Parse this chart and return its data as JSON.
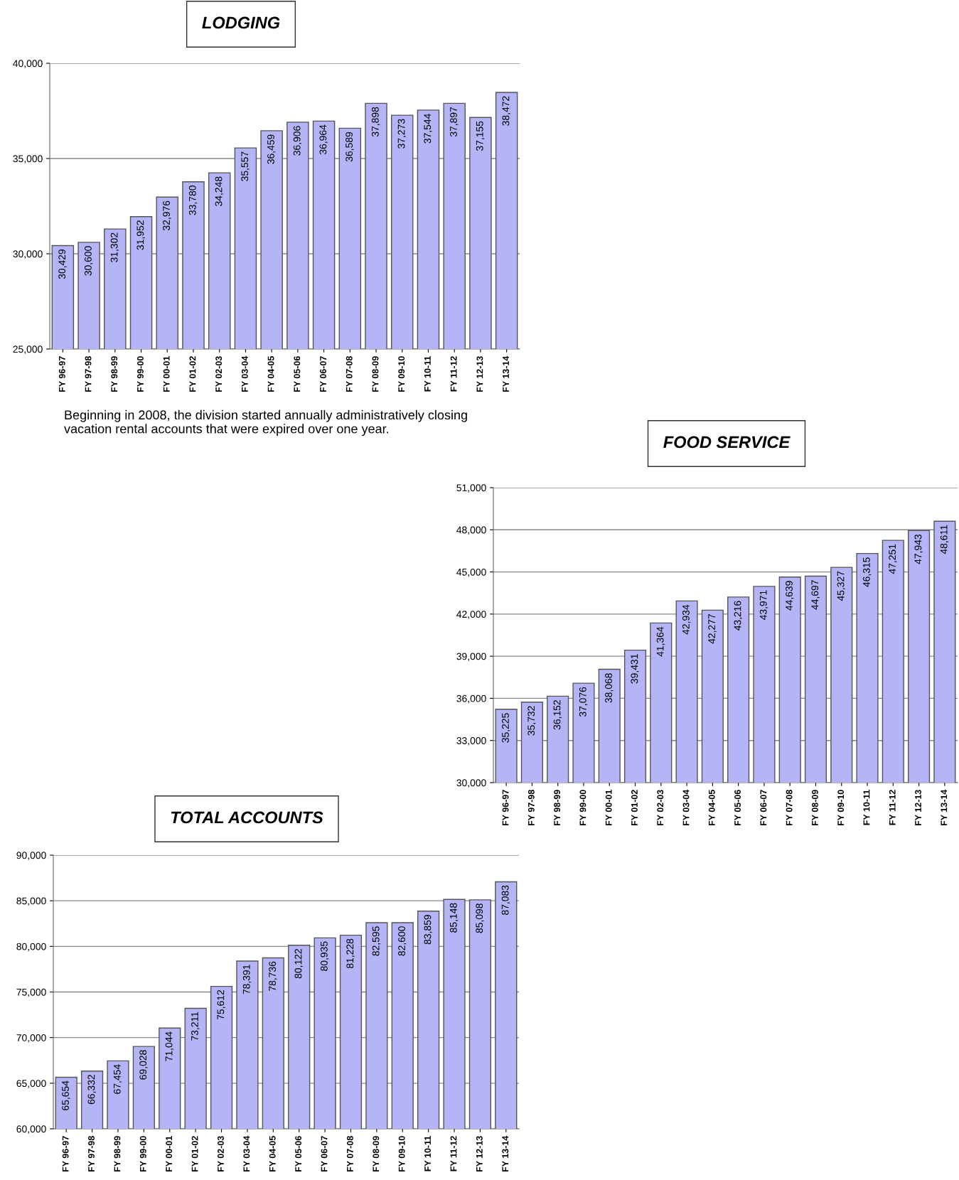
{
  "chart_data": [
    {
      "type": "bar",
      "title": "LODGING",
      "categories": [
        "FY 96-97",
        "FY 97-98",
        "FY 98-99",
        "FY 99-00",
        "FY 00-01",
        "FY 01-02",
        "FY 02-03",
        "FY 03-04",
        "FY 04-05",
        "FY 05-06",
        "FY 06-07",
        "FY 07-08",
        "FY 08-09",
        "FY 09-10",
        "FY 10-11",
        "FY 11-12",
        "FY 12-13",
        "FY 13-14"
      ],
      "values": [
        30429,
        30600,
        31302,
        31952,
        32976,
        33780,
        34248,
        35557,
        36459,
        36906,
        36964,
        36589,
        37898,
        37273,
        37544,
        37897,
        37155,
        38472
      ],
      "color": "#b4b4f6",
      "ylim": [
        25000,
        40000
      ],
      "yticks": [
        {
          "value": 25000,
          "label": "25,000"
        },
        {
          "value": 30000,
          "label": "30,000"
        },
        {
          "value": 35000,
          "label": "35,000"
        },
        {
          "value": 40000,
          "label": "40,000"
        }
      ],
      "grid": "y",
      "value_labels": [
        "30,429",
        "30,600",
        "31,302",
        "31,952",
        "32,976",
        "33,780",
        "34,248",
        "35,557",
        "36,459",
        "36,906",
        "36,964",
        "36,589",
        "37,898",
        "37,273",
        "37,544",
        "37,897",
        "37,155",
        "38,472"
      ],
      "annotations": [
        "Beginning in 2008, the division started annually administratively closing vacation rental accounts that were expired over one year."
      ]
    },
    {
      "type": "bar",
      "title": "FOOD SERVICE",
      "categories": [
        "FY 96-97",
        "FY 97-98",
        "FY 98-99",
        "FY 99-00",
        "FY 00-01",
        "FY 01-02",
        "FY 02-03",
        "FY 03-04",
        "FY 04-05",
        "FY 05-06",
        "FY 06-07",
        "FY 07-08",
        "FY 08-09",
        "FY 09-10",
        "FY 10-11",
        "FY 11-12",
        "FY 12-13",
        "FY 13-14"
      ],
      "values": [
        35225,
        35732,
        36152,
        37076,
        38068,
        39431,
        41364,
        42934,
        42277,
        43216,
        43971,
        44639,
        44697,
        45327,
        46315,
        47251,
        47943,
        48611
      ],
      "color": "#b4b4f6",
      "ylim": [
        30000,
        51000
      ],
      "yticks": [
        {
          "value": 30000,
          "label": "30,000"
        },
        {
          "value": 33000,
          "label": "33,000"
        },
        {
          "value": 36000,
          "label": "36,000"
        },
        {
          "value": 39000,
          "label": "39,000"
        },
        {
          "value": 42000,
          "label": "42,000"
        },
        {
          "value": 45000,
          "label": "45,000"
        },
        {
          "value": 48000,
          "label": "48,000"
        },
        {
          "value": 51000,
          "label": "51,000"
        }
      ],
      "grid": "y",
      "value_labels": [
        "35,225",
        "35,732",
        "36,152",
        "37,076",
        "38,068",
        "39,431",
        "41,364",
        "42,934",
        "42,277",
        "43,216",
        "43,971",
        "44,639",
        "44,697",
        "45,327",
        "46,315",
        "47,251",
        "47,943",
        "48,611"
      ]
    },
    {
      "type": "bar",
      "title": "TOTAL ACCOUNTS",
      "categories": [
        "FY 96-97",
        "FY 97-98",
        "FY 98-99",
        "FY 99-00",
        "FY 00-01",
        "FY 01-02",
        "FY 02-03",
        "FY 03-04",
        "FY 04-05",
        "FY 05-06",
        "FY 06-07",
        "FY 07-08",
        "FY 08-09",
        "FY 09-10",
        "FY 10-11",
        "FY 11-12",
        "FY 12-13",
        "FY 13-14"
      ],
      "values": [
        65654,
        66332,
        67454,
        69028,
        71044,
        73211,
        75612,
        78391,
        78736,
        80122,
        80935,
        81228,
        82595,
        82600,
        83859,
        85148,
        85098,
        87083
      ],
      "color": "#b4b4f6",
      "ylim": [
        60000,
        90000
      ],
      "yticks": [
        {
          "value": 60000,
          "label": "60,000"
        },
        {
          "value": 65000,
          "label": "65,000"
        },
        {
          "value": 70000,
          "label": "70,000"
        },
        {
          "value": 75000,
          "label": "75,000"
        },
        {
          "value": 80000,
          "label": "80,000"
        },
        {
          "value": 85000,
          "label": "85,000"
        },
        {
          "value": 90000,
          "label": "90,000"
        }
      ],
      "grid": "y",
      "value_labels": [
        "65,654",
        "66,332",
        "67,454",
        "69,028",
        "71,044",
        "73,211",
        "75,612",
        "78,391",
        "78,736",
        "80,122",
        "80,935",
        "81,228",
        "82,595",
        "82,600",
        "83,859",
        "85,148",
        "85,098",
        "87,083"
      ]
    }
  ]
}
